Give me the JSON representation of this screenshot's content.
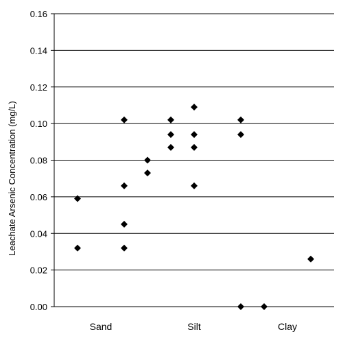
{
  "chart_data": {
    "type": "scatter",
    "title": "",
    "xlabel": "",
    "ylabel": "Leachate Arsenic Concentration (mg/L)",
    "ylim": [
      0,
      0.16
    ],
    "y_ticks": [
      "0.00",
      "0.02",
      "0.04",
      "0.06",
      "0.08",
      "0.10",
      "0.12",
      "0.14",
      "0.16"
    ],
    "y_tick_values": [
      0,
      0.02,
      0.04,
      0.06,
      0.08,
      0.1,
      0.12,
      0.14,
      0.16
    ],
    "x_ticks": [
      "Sand",
      "Silt",
      "Clay"
    ],
    "xlim": [
      0,
      12
    ],
    "x_tick_positions": [
      2,
      6,
      10
    ],
    "grid": "horizontal",
    "legend": "none",
    "marker": "diamond",
    "marker_color": "#000000",
    "points": [
      {
        "x": 1,
        "y": 0.059
      },
      {
        "x": 1,
        "y": 0.032
      },
      {
        "x": 3,
        "y": 0.102
      },
      {
        "x": 3,
        "y": 0.066
      },
      {
        "x": 3,
        "y": 0.045
      },
      {
        "x": 3,
        "y": 0.032
      },
      {
        "x": 4,
        "y": 0.08
      },
      {
        "x": 4,
        "y": 0.073
      },
      {
        "x": 5,
        "y": 0.102
      },
      {
        "x": 5,
        "y": 0.094
      },
      {
        "x": 5,
        "y": 0.087
      },
      {
        "x": 6,
        "y": 0.109
      },
      {
        "x": 6,
        "y": 0.094
      },
      {
        "x": 6,
        "y": 0.087
      },
      {
        "x": 6,
        "y": 0.066
      },
      {
        "x": 8,
        "y": 0.102
      },
      {
        "x": 8,
        "y": 0.094
      },
      {
        "x": 8,
        "y": 0.0
      },
      {
        "x": 9,
        "y": 0.0
      },
      {
        "x": 11,
        "y": 0.026
      }
    ]
  }
}
